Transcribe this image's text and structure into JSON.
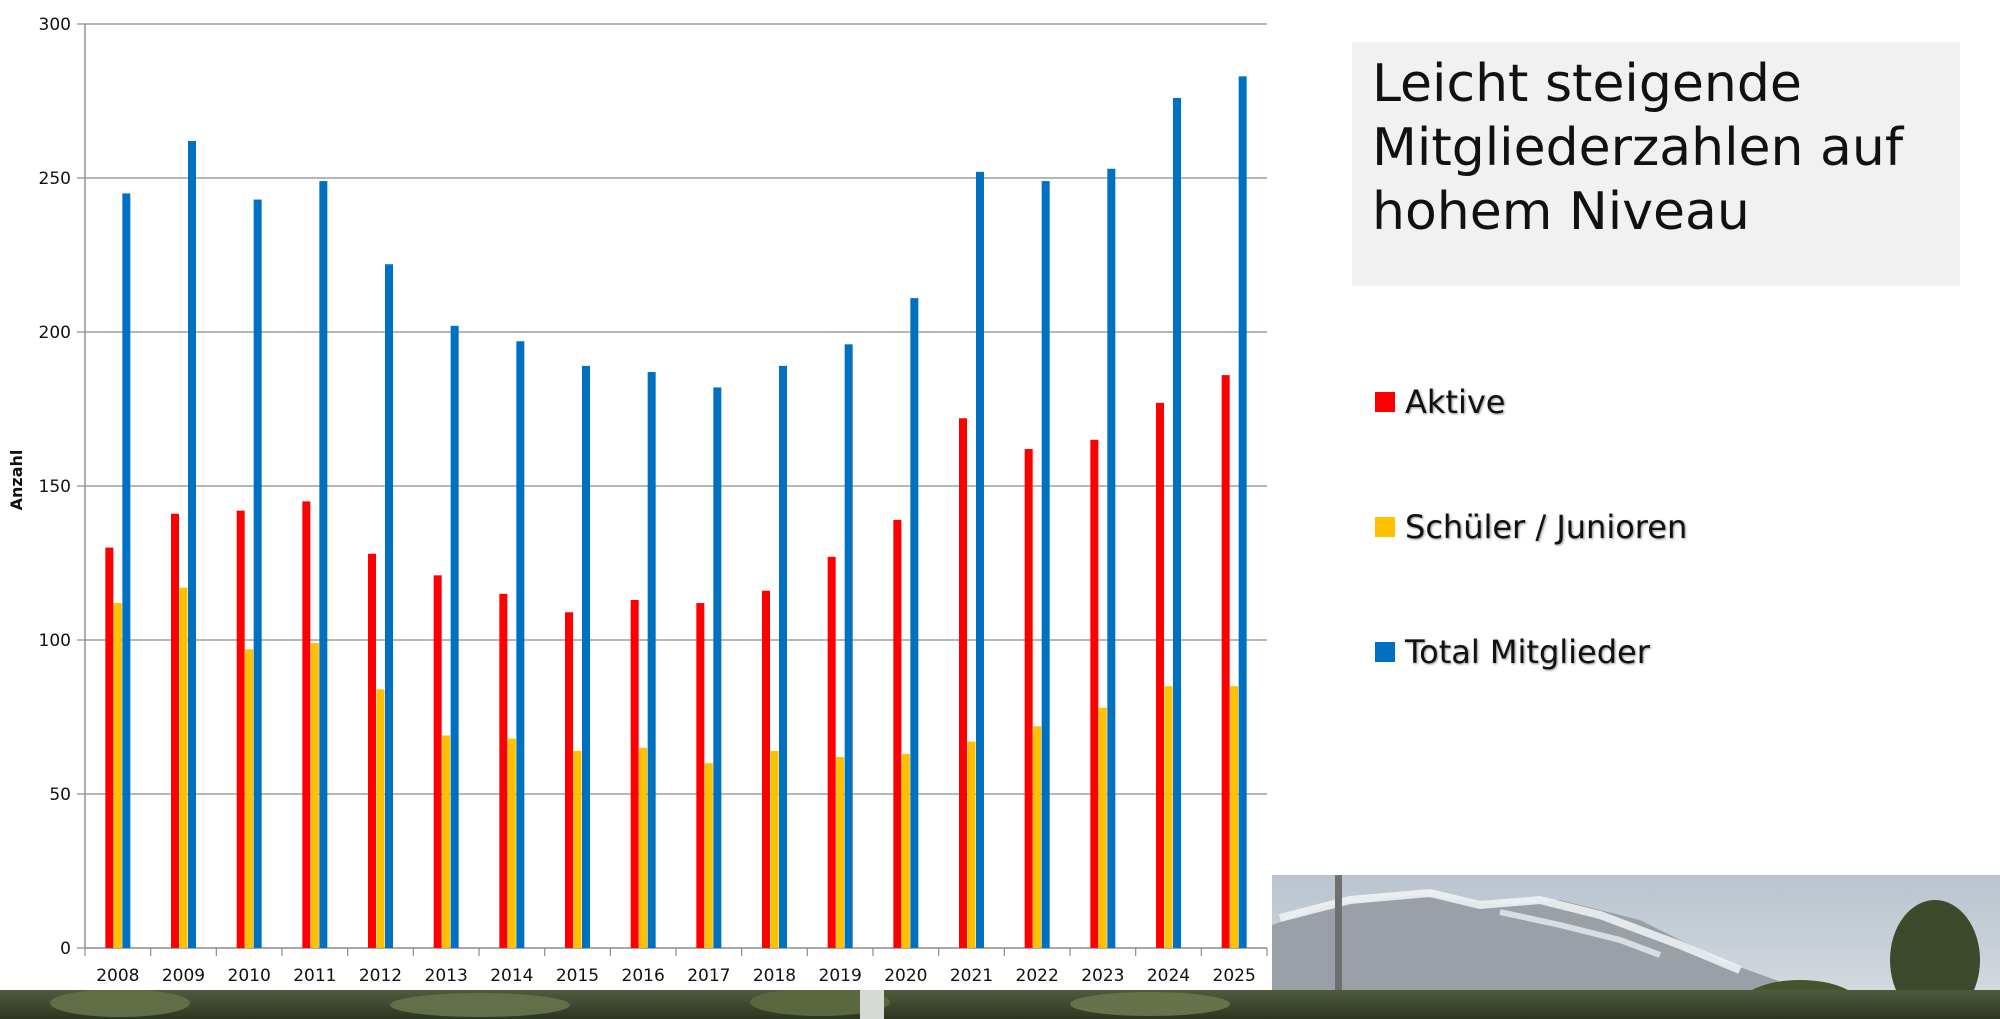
{
  "colors": {
    "aktive": "#ff0000",
    "schueler": "#ffc000",
    "total": "#0070c0",
    "grid": "#8c8c8c",
    "title_bg": "#f1f1f1"
  },
  "title": "Leicht steigende Mitgliederzahlen auf hohem Niveau",
  "legend": [
    {
      "label": "Aktive",
      "color": "#ff0000"
    },
    {
      "label": "Schüler / Junioren",
      "color": "#ffc000"
    },
    {
      "label": "Total Mitglieder",
      "color": "#0070c0"
    }
  ],
  "chart_data": {
    "type": "bar",
    "categories": [
      "2008",
      "2009",
      "2010",
      "2011",
      "2012",
      "2013",
      "2014",
      "2015",
      "2016",
      "2017",
      "2018",
      "2019",
      "2020",
      "2021",
      "2022",
      "2023",
      "2024",
      "2025"
    ],
    "series": [
      {
        "name": "Aktive",
        "color": "#ff0000",
        "values": [
          130,
          141,
          142,
          145,
          128,
          121,
          115,
          109,
          113,
          112,
          116,
          127,
          139,
          172,
          162,
          165,
          177,
          186
        ]
      },
      {
        "name": "Schüler / Junioren",
        "color": "#ffc000",
        "values": [
          112,
          117,
          97,
          99,
          84,
          69,
          68,
          64,
          65,
          60,
          64,
          62,
          63,
          67,
          72,
          78,
          85,
          85
        ]
      },
      {
        "name": "Total Mitglieder",
        "color": "#0070c0",
        "values": [
          245,
          262,
          243,
          249,
          222,
          202,
          197,
          189,
          187,
          182,
          189,
          196,
          211,
          252,
          249,
          253,
          276,
          283
        ]
      }
    ],
    "ylabel": "Anzahl",
    "ylim": [
      0,
      300
    ],
    "yticks": [
      0,
      50,
      100,
      150,
      200,
      250,
      300
    ],
    "grid": true,
    "legend_position": "right"
  }
}
